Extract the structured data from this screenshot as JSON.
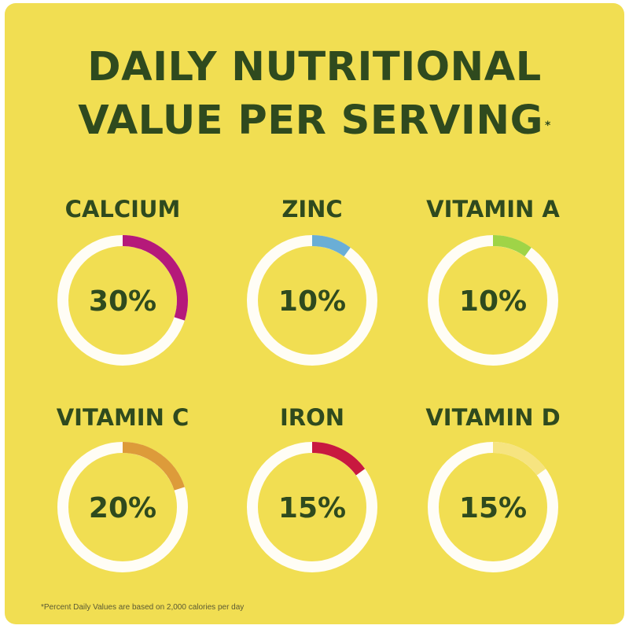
{
  "title_line1": "DAILY NUTRITIONAL",
  "title_line2": "VALUE PER SERVING",
  "title_marker": "*",
  "footnote": "*Percent Daily Values are based on 2,000 calories per day",
  "colors": {
    "background": "#f1de52",
    "text": "#2f4a1e",
    "ring_track": "#fffdf5"
  },
  "chart_data": {
    "type": "pie",
    "unit": "%",
    "items": [
      {
        "label": "CALCIUM",
        "value": 30,
        "display": "30%",
        "color": "#b5197a"
      },
      {
        "label": "ZINC",
        "value": 10,
        "display": "10%",
        "color": "#6aaed6"
      },
      {
        "label": "VITAMIN A",
        "value": 10,
        "display": "10%",
        "color": "#9fd447"
      },
      {
        "label": "VITAMIN C",
        "value": 20,
        "display": "20%",
        "color": "#dd9b3a"
      },
      {
        "label": "IRON",
        "value": 15,
        "display": "15%",
        "color": "#c8193f"
      },
      {
        "label": "VITAMIN D",
        "value": 15,
        "display": "15%",
        "color": "#f6e480"
      }
    ]
  }
}
